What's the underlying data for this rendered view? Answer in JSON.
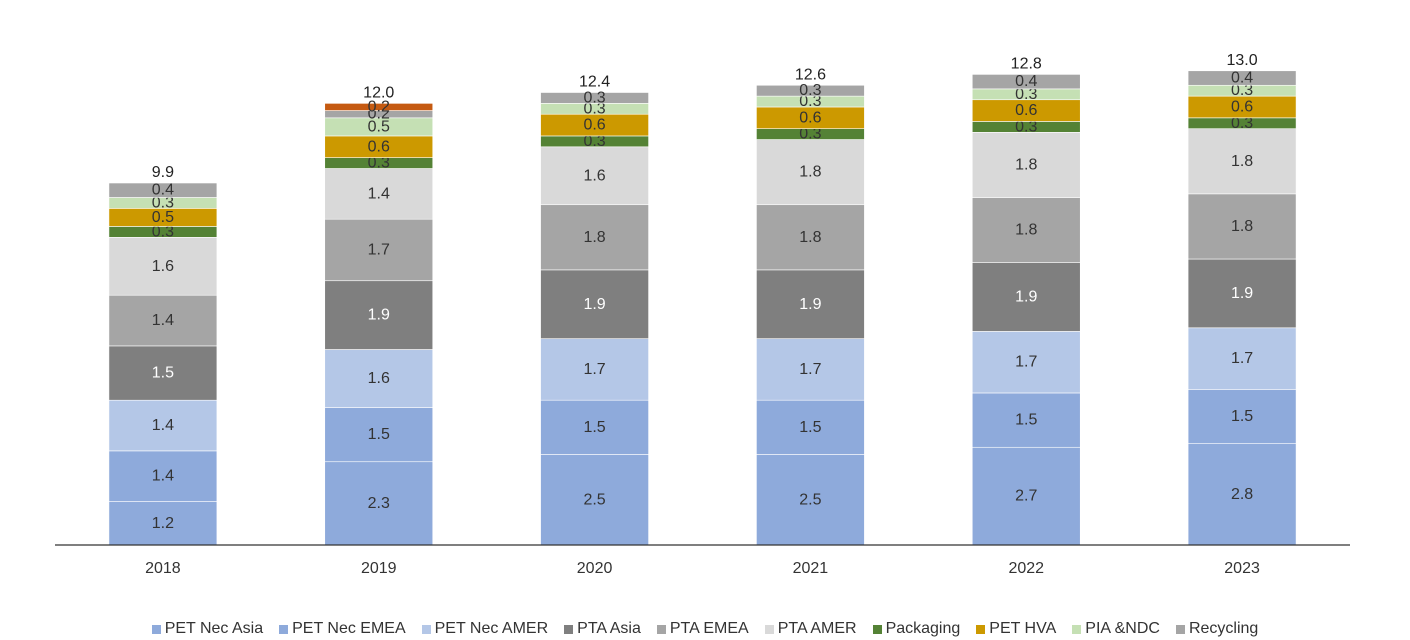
{
  "chart_data": {
    "type": "bar",
    "stacked": true,
    "categories": [
      "2018",
      "2019",
      "2020",
      "2021",
      "2022",
      "2023"
    ],
    "totals": [
      "9.9",
      "12.0",
      "12.4",
      "12.6",
      "12.8",
      "13.0"
    ],
    "ylim": [
      0,
      14
    ],
    "grid": false,
    "legend_position": "bottom",
    "series": [
      {
        "name": "PET Nec Asia",
        "color": "#8eaadb",
        "label_color": "#333333",
        "values": [
          1.2,
          2.3,
          2.5,
          2.5,
          2.7,
          2.8
        ]
      },
      {
        "name": "PET Nec EMEA",
        "color": "#8eaadb",
        "label_color": "#333333",
        "values": [
          1.4,
          1.5,
          1.5,
          1.5,
          1.5,
          1.5
        ]
      },
      {
        "name": "PET Nec AMER",
        "color": "#b4c7e7",
        "label_color": "#333333",
        "values": [
          1.4,
          1.6,
          1.7,
          1.7,
          1.7,
          1.7
        ]
      },
      {
        "name": "PTA Asia",
        "color": "#7f7f7f",
        "label_color": "#ffffff",
        "values": [
          1.5,
          1.9,
          1.9,
          1.9,
          1.9,
          1.9
        ]
      },
      {
        "name": "PTA EMEA",
        "color": "#a5a5a5",
        "label_color": "#333333",
        "values": [
          1.4,
          1.7,
          1.8,
          1.8,
          1.8,
          1.8
        ]
      },
      {
        "name": "PTA AMER",
        "color": "#d9d9d9",
        "label_color": "#333333",
        "values": [
          1.6,
          1.4,
          1.6,
          1.8,
          1.8,
          1.8
        ]
      },
      {
        "name": "Packaging",
        "color": "#548235",
        "label_color": "#333333",
        "values": [
          0.3,
          0.3,
          0.3,
          0.3,
          0.3,
          0.3
        ]
      },
      {
        "name": "PET HVA",
        "color": "#cc9900",
        "label_color": "#333333",
        "values": [
          0.5,
          0.6,
          0.6,
          0.6,
          0.6,
          0.6
        ]
      },
      {
        "name": "PIA &NDC",
        "color": "#c5e0b4",
        "label_color": "#333333",
        "values": [
          0.3,
          0.5,
          0.3,
          0.3,
          0.3,
          0.3
        ]
      },
      {
        "name": "Recycling",
        "color": "#a5a5a5",
        "label_color": "#333333",
        "values": [
          0.4,
          0.2,
          0.3,
          0.3,
          0.4,
          0.4
        ]
      },
      {
        "name": "",
        "color": "#c55a11",
        "label_color": "#333333",
        "values": [
          0,
          0.2,
          0,
          0,
          0,
          0
        ]
      }
    ]
  }
}
